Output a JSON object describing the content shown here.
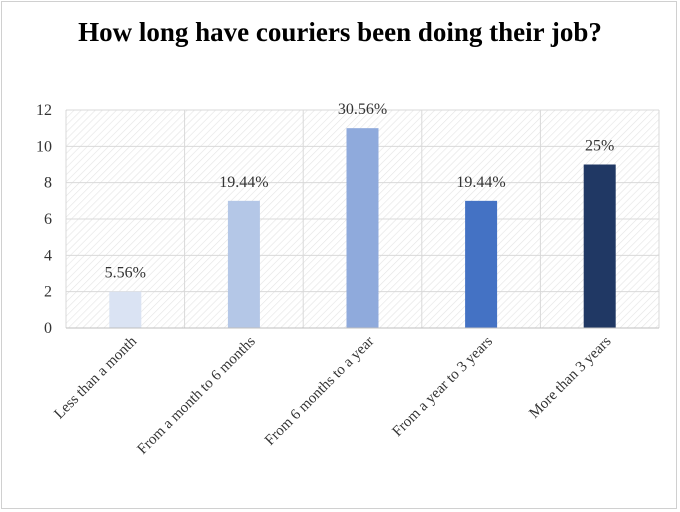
{
  "chart_data": {
    "type": "bar",
    "title": "How long have couriers been doing their job?",
    "categories": [
      "Less than a month",
      "From a month to 6 months",
      "From 6 months to a year",
      "From a year to 3 years",
      "More than 3 years"
    ],
    "values": [
      2,
      7,
      11,
      7,
      9
    ],
    "data_labels": [
      "5.56%",
      "19.44%",
      "30.56%",
      "19.44%",
      "25%"
    ],
    "colors": [
      "#dae3f3",
      "#b4c7e7",
      "#8faadc",
      "#4472c4",
      "#203864"
    ],
    "ylim": [
      0,
      12
    ],
    "yticks": [
      "0",
      "2",
      "4",
      "6",
      "8",
      "10",
      "12"
    ],
    "xlabel": "",
    "ylabel": "",
    "grid": true,
    "plot_background": "hatched"
  }
}
